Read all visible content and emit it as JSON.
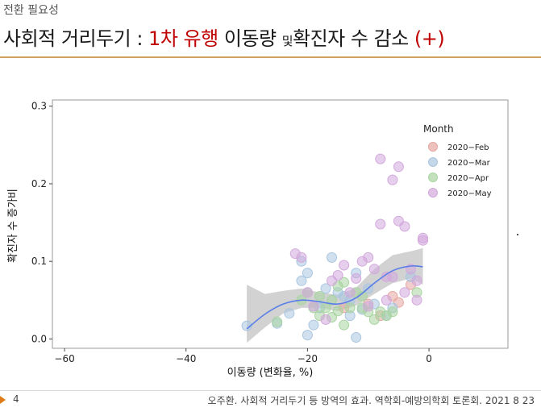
{
  "header": {
    "kicker": "전환 필요성",
    "title_part1": "사회적 거리두기 : ",
    "title_part2": "1차 유행",
    "title_part3": " 이동량 ",
    "title_part4": "및",
    "title_part5": "확진자 수 감소 ",
    "title_part6": "(+)"
  },
  "footer": {
    "page_number": "4",
    "citation": "오주환. 사회적 거리두기 등 방역의 효과. 역학회-예방의학회 토론회. 2021 8 23"
  },
  "colors": {
    "accent_red": "#c00000",
    "feb": "#e6a6a0",
    "mar": "#a9c6e0",
    "apr": "#a8d4a0",
    "may": "#d2a8dc",
    "smooth_line": "#5b7fe8"
  },
  "chart_data": {
    "type": "scatter",
    "title": "",
    "xlabel": "이동량 (변화율, %)",
    "ylabel": "확진자 수 증가비",
    "xlim": [
      -62,
      13
    ],
    "ylim": [
      -0.012,
      0.308
    ],
    "x_ticks": [
      -60,
      -40,
      -20,
      0
    ],
    "x_tick_labels": [
      "−60",
      "−40",
      "−20",
      "0"
    ],
    "y_ticks": [
      0.0,
      0.1,
      0.2,
      0.3
    ],
    "y_tick_labels": [
      "0.0",
      "0.1",
      "0.2",
      "0.3"
    ],
    "grid": false,
    "legend": {
      "title": "Month",
      "placement": "top-right",
      "entries": [
        "2020−Feb",
        "2020−Mar",
        "2020−Apr",
        "2020−May"
      ]
    },
    "series": [
      {
        "name": "2020−Feb",
        "color": "#e6a6a0",
        "points": [
          [
            -3,
            0.07
          ],
          [
            -6,
            0.055
          ],
          [
            -10,
            0.045
          ],
          [
            -14,
            0.04
          ],
          [
            -8,
            0.03
          ],
          [
            -5,
            0.047
          ]
        ]
      },
      {
        "name": "2020−Mar",
        "color": "#a9c6e0",
        "points": [
          [
            -30,
            0.017
          ],
          [
            -25,
            0.02
          ],
          [
            -23,
            0.033
          ],
          [
            -21,
            0.1
          ],
          [
            -20,
            0.085
          ],
          [
            -21,
            0.075
          ],
          [
            -19,
            0.018
          ],
          [
            -20,
            0.005
          ],
          [
            -18,
            0.04
          ],
          [
            -17,
            0.065
          ],
          [
            -16,
            0.105
          ],
          [
            -15,
            0.06
          ],
          [
            -14,
            0.055
          ],
          [
            -13,
            0.05
          ],
          [
            -13,
            0.03
          ],
          [
            -12,
            0.085
          ],
          [
            -12,
            0.002
          ],
          [
            -11,
            0.038
          ],
          [
            -10,
            0.065
          ],
          [
            -9,
            0.045
          ],
          [
            -7,
            0.03
          ],
          [
            -6,
            0.04
          ],
          [
            -3,
            0.08
          ]
        ]
      },
      {
        "name": "2020−Apr",
        "color": "#a8d4a0",
        "points": [
          [
            -25,
            0.022
          ],
          [
            -21,
            0.05
          ],
          [
            -20,
            0.06
          ],
          [
            -19,
            0.04
          ],
          [
            -18,
            0.055
          ],
          [
            -18,
            0.03
          ],
          [
            -17,
            0.04
          ],
          [
            -16,
            0.028
          ],
          [
            -16,
            0.05
          ],
          [
            -15,
            0.068
          ],
          [
            -15,
            0.036
          ],
          [
            -14,
            0.073
          ],
          [
            -14,
            0.018
          ],
          [
            -13,
            0.04
          ],
          [
            -12,
            0.06
          ],
          [
            -11,
            0.04
          ],
          [
            -11,
            0.055
          ],
          [
            -10,
            0.035
          ],
          [
            -9,
            0.025
          ],
          [
            -8,
            0.035
          ],
          [
            -7,
            0.03
          ],
          [
            -6,
            0.035
          ],
          [
            -2,
            0.06
          ]
        ]
      },
      {
        "name": "2020−May",
        "color": "#d2a8dc",
        "points": [
          [
            -22,
            0.11
          ],
          [
            -21,
            0.105
          ],
          [
            -20,
            0.06
          ],
          [
            -19,
            0.042
          ],
          [
            -17,
            0.025
          ],
          [
            -16,
            0.075
          ],
          [
            -15,
            0.082
          ],
          [
            -14,
            0.095
          ],
          [
            -13,
            0.06
          ],
          [
            -12,
            0.078
          ],
          [
            -11,
            0.1
          ],
          [
            -10,
            0.105
          ],
          [
            -10,
            0.042
          ],
          [
            -9,
            0.09
          ],
          [
            -8,
            0.148
          ],
          [
            -8,
            0.232
          ],
          [
            -7,
            0.08
          ],
          [
            -7,
            0.05
          ],
          [
            -6,
            0.08
          ],
          [
            -6,
            0.205
          ],
          [
            -5,
            0.152
          ],
          [
            -5,
            0.222
          ],
          [
            -4,
            0.06
          ],
          [
            -4,
            0.145
          ],
          [
            -3,
            0.09
          ],
          [
            -2,
            0.05
          ],
          [
            -2,
            0.075
          ],
          [
            -1,
            0.13
          ],
          [
            -1,
            0.127
          ]
        ]
      }
    ],
    "smooth_line": {
      "x": [
        -30,
        -27,
        -24,
        -21,
        -18,
        -15,
        -12,
        -9,
        -6,
        -3,
        -1
      ],
      "y": [
        0.013,
        0.032,
        0.045,
        0.05,
        0.048,
        0.045,
        0.053,
        0.072,
        0.088,
        0.094,
        0.093
      ]
    },
    "confidence_band": {
      "x": [
        -30,
        -27,
        -24,
        -21,
        -18,
        -15,
        -12,
        -9,
        -6,
        -3,
        -1
      ],
      "lower": [
        -0.005,
        0.015,
        0.033,
        0.04,
        0.04,
        0.036,
        0.043,
        0.058,
        0.072,
        0.078,
        0.07
      ],
      "upper": [
        0.07,
        0.058,
        0.062,
        0.065,
        0.06,
        0.057,
        0.066,
        0.09,
        0.108,
        0.113,
        0.117
      ]
    }
  }
}
